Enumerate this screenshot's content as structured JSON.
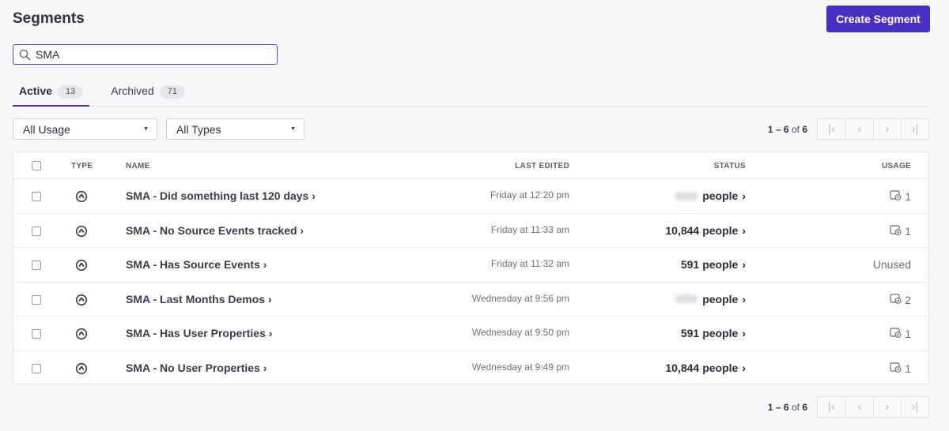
{
  "header": {
    "title": "Segments",
    "create_label": "Create Segment"
  },
  "search": {
    "value": "SMA",
    "icon": "search-icon"
  },
  "tabs": [
    {
      "label": "Active",
      "count": "13",
      "active": true
    },
    {
      "label": "Archived",
      "count": "71",
      "active": false
    }
  ],
  "filters": {
    "usage": "All Usage",
    "types": "All Types"
  },
  "pagination": {
    "start": "1 – 6",
    "of": "of",
    "total": "6"
  },
  "table": {
    "headers": {
      "type": "TYPE",
      "name": "NAME",
      "last_edited": "LAST EDITED",
      "status": "STATUS",
      "usage": "USAGE"
    },
    "rows": [
      {
        "name": "SMA - Did something last 120 days",
        "last_edited": "Friday at 12:20 pm",
        "status_count": "",
        "status_label": "people",
        "usage": "1",
        "count_hidden": true
      },
      {
        "name": "SMA - No Source Events tracked",
        "last_edited": "Friday at 11:33 am",
        "status_count": "10,844",
        "status_label": "people",
        "usage": "1",
        "count_hidden": false
      },
      {
        "name": "SMA - Has Source Events",
        "last_edited": "Friday at 11:32 am",
        "status_count": "591",
        "status_label": "people",
        "usage": "Unused",
        "count_hidden": false
      },
      {
        "name": "SMA - Last Months Demos",
        "last_edited": "Wednesday at 9:56 pm",
        "status_count": "",
        "status_label": "people",
        "usage": "2",
        "count_hidden": true
      },
      {
        "name": "SMA - Has User Properties",
        "last_edited": "Wednesday at 9:50 pm",
        "status_count": "591",
        "status_label": "people",
        "usage": "1",
        "count_hidden": false
      },
      {
        "name": "SMA - No User Properties",
        "last_edited": "Wednesday at 9:49 pm",
        "status_count": "10,844",
        "status_label": "people",
        "usage": "1",
        "count_hidden": false
      }
    ]
  },
  "colors": {
    "accent": "#4a2fc4"
  }
}
